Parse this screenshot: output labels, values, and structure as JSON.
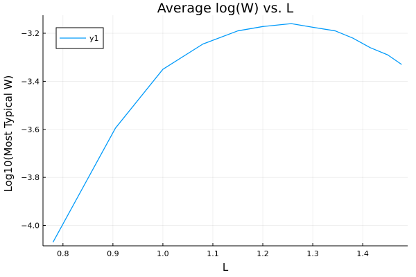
{
  "chart_data": {
    "type": "line",
    "title": "Average log(W) vs. L",
    "xlabel": "L",
    "ylabel": "Log10(Most Typical W)",
    "xlim": [
      0.76,
      1.49
    ],
    "ylim": [
      -4.085,
      -3.125
    ],
    "xticks": [
      0.8,
      0.9,
      1.0,
      1.1,
      1.2,
      1.3,
      1.4
    ],
    "xtick_labels": [
      "0.8",
      "0.9",
      "1.0",
      "1.1",
      "1.2",
      "1.3",
      "1.4"
    ],
    "yticks": [
      -4.0,
      -3.8,
      -3.6,
      -3.4,
      -3.2
    ],
    "ytick_labels": [
      "−4.0",
      "−3.8",
      "−3.6",
      "−3.4",
      "−3.2"
    ],
    "grid": true,
    "legend": "top-left",
    "series": [
      {
        "name": "y1",
        "color": "#009AFA",
        "x": [
          0.78,
          0.905,
          1.0,
          1.08,
          1.15,
          1.2,
          1.257,
          1.3,
          1.345,
          1.38,
          1.415,
          1.45,
          1.478
        ],
        "y": [
          -4.07,
          -3.595,
          -3.35,
          -3.245,
          -3.19,
          -3.172,
          -3.16,
          -3.175,
          -3.19,
          -3.22,
          -3.26,
          -3.29,
          -3.33
        ]
      }
    ]
  }
}
